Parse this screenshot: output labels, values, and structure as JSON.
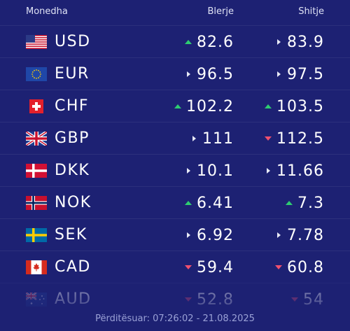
{
  "header": {
    "currency": "Monedha",
    "buy": "Blerje",
    "sell": "Shitje"
  },
  "rows": [
    {
      "code": "USD",
      "buy": "82.6",
      "buy_trend": "up",
      "sell": "83.9",
      "sell_trend": "flat"
    },
    {
      "code": "EUR",
      "buy": "96.5",
      "buy_trend": "flat",
      "sell": "97.5",
      "sell_trend": "flat"
    },
    {
      "code": "CHF",
      "buy": "102.2",
      "buy_trend": "up",
      "sell": "103.5",
      "sell_trend": "up"
    },
    {
      "code": "GBP",
      "buy": "111",
      "buy_trend": "flat",
      "sell": "112.5",
      "sell_trend": "down"
    },
    {
      "code": "DKK",
      "buy": "10.1",
      "buy_trend": "flat",
      "sell": "11.66",
      "sell_trend": "flat"
    },
    {
      "code": "NOK",
      "buy": "6.41",
      "buy_trend": "up",
      "sell": "7.3",
      "sell_trend": "up"
    },
    {
      "code": "SEK",
      "buy": "6.92",
      "buy_trend": "flat",
      "sell": "7.78",
      "sell_trend": "flat"
    },
    {
      "code": "CAD",
      "buy": "59.4",
      "buy_trend": "down",
      "sell": "60.8",
      "sell_trend": "down"
    },
    {
      "code": "AUD",
      "buy": "52.8",
      "buy_trend": "down",
      "sell": "54",
      "sell_trend": "down"
    }
  ],
  "footer": {
    "updated": "Përditësuar: 07:26:02 - 21.08.2025"
  }
}
